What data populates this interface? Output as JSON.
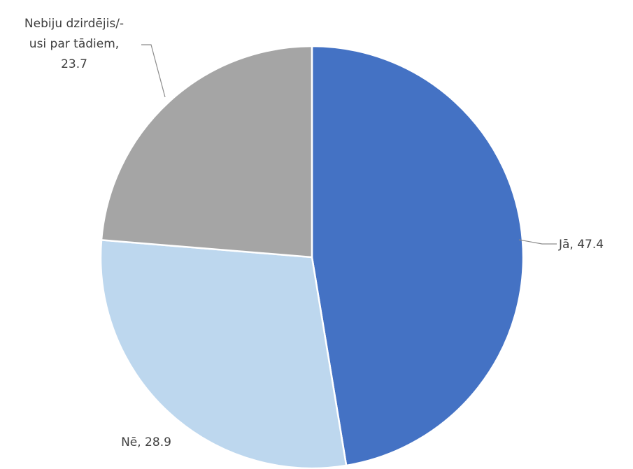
{
  "chart_data": {
    "type": "pie",
    "title": "",
    "slices": [
      {
        "label": "Jā",
        "value": 47.4,
        "color": "#4472c4",
        "text": "Jā, 47.4"
      },
      {
        "label": "Nē",
        "value": 28.9,
        "color": "#bdd7ee",
        "text": "Nē, 28.9"
      },
      {
        "label": "Nebiju dzirdējis/-usi par tādiem",
        "value": 23.7,
        "color": "#a5a5a5",
        "text_lines": [
          "Nebiju dzirdējis/-",
          "usi par tādiem,",
          "23.7"
        ]
      }
    ]
  }
}
